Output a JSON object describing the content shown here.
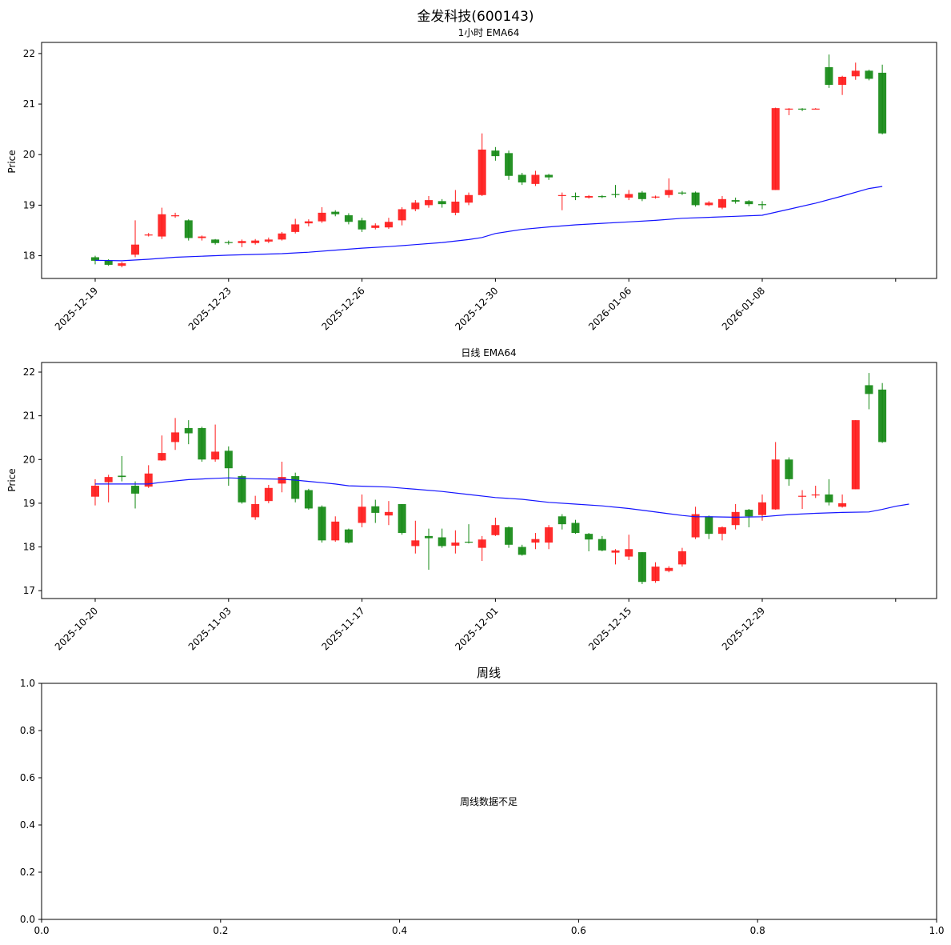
{
  "suptitle": "金发科技(600143)",
  "colors": {
    "up": "#ff1a1a",
    "down": "#138913",
    "ema": "#1414ff"
  },
  "chart_data": [
    {
      "type": "candlestick",
      "title": "1小时 EMA64",
      "ylabel": "Price",
      "ylim": [
        17.55,
        22.22
      ],
      "yticks": [
        "18",
        "19",
        "20",
        "21",
        "22"
      ],
      "xticks": [
        {
          "index": 0,
          "label": "2025-12-19"
        },
        {
          "index": 10,
          "label": "2025-12-23"
        },
        {
          "index": 20,
          "label": "2025-12-26"
        },
        {
          "index": 30,
          "label": "2025-12-30"
        },
        {
          "index": 40,
          "label": "2026-01-06"
        },
        {
          "index": 50,
          "label": "2026-01-08"
        },
        {
          "index": 60,
          "label": ""
        }
      ],
      "candles": [
        [
          17.97,
          17.9,
          18.0,
          17.83
        ],
        [
          17.9,
          17.82,
          17.93,
          17.8
        ],
        [
          17.8,
          17.85,
          17.88,
          17.77
        ],
        [
          18.02,
          18.22,
          18.7,
          17.97
        ],
        [
          18.4,
          18.42,
          18.45,
          18.38
        ],
        [
          18.38,
          18.82,
          18.95,
          18.33
        ],
        [
          18.78,
          18.8,
          18.85,
          18.75
        ],
        [
          18.7,
          18.35,
          18.72,
          18.3
        ],
        [
          18.35,
          18.38,
          18.4,
          18.3
        ],
        [
          18.32,
          18.25,
          18.33,
          18.22
        ],
        [
          18.27,
          18.25,
          18.3,
          18.22
        ],
        [
          18.25,
          18.29,
          18.32,
          18.17
        ],
        [
          18.25,
          18.3,
          18.33,
          18.22
        ],
        [
          18.28,
          18.32,
          18.36,
          18.25
        ],
        [
          18.32,
          18.44,
          18.47,
          18.3
        ],
        [
          18.47,
          18.62,
          18.73,
          18.44
        ],
        [
          18.64,
          18.68,
          18.72,
          18.58
        ],
        [
          18.68,
          18.85,
          18.96,
          18.65
        ],
        [
          18.87,
          18.82,
          18.9,
          18.78
        ],
        [
          18.8,
          18.67,
          18.84,
          18.62
        ],
        [
          18.7,
          18.52,
          18.75,
          18.47
        ],
        [
          18.55,
          18.6,
          18.64,
          18.52
        ],
        [
          18.56,
          18.67,
          18.75,
          18.53
        ],
        [
          18.7,
          18.92,
          18.96,
          18.6
        ],
        [
          18.92,
          19.05,
          19.1,
          18.88
        ],
        [
          19.0,
          19.1,
          19.18,
          18.95
        ],
        [
          19.08,
          19.02,
          19.12,
          18.95
        ],
        [
          18.85,
          19.07,
          19.3,
          18.8
        ],
        [
          19.05,
          19.2,
          19.25,
          19.0
        ],
        [
          19.2,
          20.1,
          20.42,
          19.18
        ],
        [
          20.08,
          19.97,
          20.15,
          19.88
        ],
        [
          20.03,
          19.58,
          20.08,
          19.5
        ],
        [
          19.6,
          19.45,
          19.64,
          19.4
        ],
        [
          19.42,
          19.6,
          19.68,
          19.38
        ],
        [
          19.6,
          19.55,
          19.62,
          19.5
        ],
        [
          19.2,
          19.2,
          19.25,
          18.9
        ],
        [
          19.18,
          19.17,
          19.25,
          19.1
        ],
        [
          19.15,
          19.18,
          19.2,
          19.13
        ],
        [
          19.18,
          19.16,
          19.2,
          19.14
        ],
        [
          19.22,
          19.2,
          19.4,
          19.15
        ],
        [
          19.15,
          19.22,
          19.3,
          19.1
        ],
        [
          19.25,
          19.12,
          19.28,
          19.08
        ],
        [
          19.15,
          19.17,
          19.19,
          19.13
        ],
        [
          19.2,
          19.3,
          19.53,
          19.15
        ],
        [
          19.25,
          19.23,
          19.28,
          19.2
        ],
        [
          19.25,
          19.0,
          19.27,
          18.97
        ],
        [
          19.0,
          19.05,
          19.08,
          18.98
        ],
        [
          18.95,
          19.12,
          19.18,
          18.92
        ],
        [
          19.1,
          19.07,
          19.15,
          19.03
        ],
        [
          19.08,
          19.02,
          19.1,
          18.98
        ],
        [
          19.02,
          19.0,
          19.08,
          18.92
        ],
        [
          19.3,
          20.92,
          20.93,
          19.3
        ],
        [
          20.9,
          20.91,
          20.92,
          20.78
        ],
        [
          20.91,
          20.9,
          20.92,
          20.86
        ],
        [
          20.91,
          20.91,
          20.92,
          20.9
        ],
        [
          21.73,
          21.38,
          21.98,
          21.32
        ],
        [
          21.38,
          21.54,
          21.56,
          21.18
        ],
        [
          21.55,
          21.66,
          21.82,
          21.48
        ],
        [
          21.66,
          21.5,
          21.68,
          21.47
        ],
        [
          21.62,
          20.42,
          21.78,
          20.4
        ]
      ],
      "ema": [
        [
          0,
          17.91
        ],
        [
          2,
          17.9
        ],
        [
          4,
          17.93
        ],
        [
          6,
          17.97
        ],
        [
          8,
          17.99
        ],
        [
          10,
          18.01
        ],
        [
          14,
          18.04
        ],
        [
          16,
          18.07
        ],
        [
          18,
          18.11
        ],
        [
          20,
          18.15
        ],
        [
          22,
          18.18
        ],
        [
          24,
          18.22
        ],
        [
          26,
          18.26
        ],
        [
          28,
          18.32
        ],
        [
          29,
          18.36
        ],
        [
          30,
          18.44
        ],
        [
          32,
          18.52
        ],
        [
          34,
          18.57
        ],
        [
          36,
          18.61
        ],
        [
          38,
          18.64
        ],
        [
          40,
          18.67
        ],
        [
          42,
          18.7
        ],
        [
          44,
          18.74
        ],
        [
          46,
          18.76
        ],
        [
          48,
          18.78
        ],
        [
          50,
          18.8
        ],
        [
          52,
          18.92
        ],
        [
          54,
          19.04
        ],
        [
          56,
          19.18
        ],
        [
          58,
          19.33
        ],
        [
          59,
          19.37
        ]
      ]
    },
    {
      "type": "candlestick",
      "title": "日线 EMA64",
      "ylabel": "Price",
      "ylim": [
        16.82,
        22.22
      ],
      "yticks": [
        "17",
        "18",
        "19",
        "20",
        "21",
        "22"
      ],
      "xticks": [
        {
          "index": 0,
          "label": "2025-10-20"
        },
        {
          "index": 10,
          "label": "2025-11-03"
        },
        {
          "index": 20,
          "label": "2025-11-17"
        },
        {
          "index": 30,
          "label": "2025-12-01"
        },
        {
          "index": 40,
          "label": "2025-12-15"
        },
        {
          "index": 50,
          "label": "2025-12-29"
        },
        {
          "index": 60,
          "label": ""
        }
      ],
      "candles": [
        [
          19.15,
          19.4,
          19.55,
          18.95
        ],
        [
          19.48,
          19.6,
          19.65,
          19.02
        ],
        [
          19.63,
          19.6,
          20.08,
          19.5
        ],
        [
          19.4,
          19.22,
          19.5,
          18.88
        ],
        [
          19.38,
          19.68,
          19.87,
          19.35
        ],
        [
          19.98,
          20.15,
          20.55,
          19.97
        ],
        [
          20.4,
          20.62,
          20.95,
          20.22
        ],
        [
          20.72,
          20.6,
          20.9,
          20.35
        ],
        [
          20.72,
          20.0,
          20.75,
          19.95
        ],
        [
          20.0,
          20.18,
          20.8,
          19.95
        ],
        [
          20.2,
          19.8,
          20.3,
          19.4
        ],
        [
          19.62,
          19.02,
          19.65,
          18.99
        ],
        [
          18.68,
          18.98,
          19.17,
          18.62
        ],
        [
          19.05,
          19.35,
          19.42,
          19.0
        ],
        [
          19.45,
          19.6,
          19.95,
          19.25
        ],
        [
          19.62,
          19.1,
          19.7,
          19.02
        ],
        [
          19.3,
          18.88,
          19.33,
          18.85
        ],
        [
          18.92,
          18.15,
          18.95,
          18.1
        ],
        [
          18.15,
          18.58,
          18.7,
          18.12
        ],
        [
          18.4,
          18.1,
          18.42,
          18.08
        ],
        [
          18.55,
          18.92,
          19.2,
          18.45
        ],
        [
          18.93,
          18.78,
          19.08,
          18.55
        ],
        [
          18.72,
          18.8,
          19.05,
          18.5
        ],
        [
          18.98,
          18.32,
          18.98,
          18.28
        ],
        [
          18.02,
          18.15,
          18.6,
          17.85
        ],
        [
          18.25,
          18.2,
          18.42,
          17.48
        ],
        [
          18.22,
          18.02,
          18.42,
          17.98
        ],
        [
          18.03,
          18.1,
          18.38,
          17.85
        ],
        [
          18.12,
          18.1,
          18.52,
          18.08
        ],
        [
          17.98,
          18.17,
          18.25,
          17.68
        ],
        [
          18.27,
          18.5,
          18.67,
          18.25
        ],
        [
          18.45,
          18.05,
          18.47,
          17.98
        ],
        [
          18.0,
          17.82,
          18.05,
          17.8
        ],
        [
          18.1,
          18.18,
          18.32,
          17.95
        ],
        [
          18.1,
          18.45,
          18.5,
          17.95
        ],
        [
          18.7,
          18.52,
          18.75,
          18.4
        ],
        [
          18.55,
          18.32,
          18.62,
          18.3
        ],
        [
          18.3,
          18.17,
          18.32,
          17.9
        ],
        [
          18.18,
          17.92,
          18.25,
          17.9
        ],
        [
          17.87,
          17.92,
          17.95,
          17.6
        ],
        [
          17.78,
          17.95,
          18.28,
          17.7
        ],
        [
          17.88,
          17.2,
          17.88,
          17.15
        ],
        [
          17.22,
          17.55,
          17.65,
          17.18
        ],
        [
          17.45,
          17.52,
          17.56,
          17.42
        ],
        [
          17.6,
          17.9,
          17.98,
          17.55
        ],
        [
          18.22,
          18.75,
          18.92,
          18.18
        ],
        [
          18.7,
          18.3,
          18.72,
          18.18
        ],
        [
          18.3,
          18.45,
          18.47,
          18.15
        ],
        [
          18.5,
          18.8,
          18.98,
          18.4
        ],
        [
          18.85,
          18.7,
          18.87,
          18.45
        ],
        [
          18.73,
          19.02,
          19.2,
          18.6
        ],
        [
          18.86,
          20.0,
          20.4,
          18.85
        ],
        [
          20.0,
          19.55,
          20.05,
          19.4
        ],
        [
          19.15,
          19.17,
          19.3,
          18.87
        ],
        [
          19.2,
          19.2,
          19.4,
          19.12
        ],
        [
          19.2,
          19.02,
          19.55,
          18.95
        ],
        [
          18.92,
          19.0,
          19.2,
          18.9
        ],
        [
          19.32,
          20.9,
          20.9,
          19.32
        ],
        [
          21.7,
          21.5,
          21.98,
          21.15
        ],
        [
          21.6,
          20.4,
          21.75,
          20.38
        ]
      ],
      "ema": [
        [
          0,
          19.44
        ],
        [
          2,
          19.44
        ],
        [
          4,
          19.44
        ],
        [
          5,
          19.48
        ],
        [
          7,
          19.54
        ],
        [
          9,
          19.57
        ],
        [
          10,
          19.58
        ],
        [
          12,
          19.56
        ],
        [
          14,
          19.55
        ],
        [
          15,
          19.53
        ],
        [
          16,
          19.5
        ],
        [
          17,
          19.47
        ],
        [
          18,
          19.44
        ],
        [
          19,
          19.4
        ],
        [
          20,
          19.39
        ],
        [
          22,
          19.37
        ],
        [
          24,
          19.32
        ],
        [
          26,
          19.27
        ],
        [
          28,
          19.2
        ],
        [
          30,
          19.13
        ],
        [
          32,
          19.09
        ],
        [
          34,
          19.02
        ],
        [
          36,
          18.98
        ],
        [
          38,
          18.94
        ],
        [
          40,
          18.88
        ],
        [
          41,
          18.84
        ],
        [
          43,
          18.76
        ],
        [
          44,
          18.72
        ],
        [
          45,
          18.69
        ],
        [
          46,
          18.69
        ],
        [
          48,
          18.68
        ],
        [
          50,
          18.69
        ],
        [
          52,
          18.74
        ],
        [
          54,
          18.77
        ],
        [
          56,
          18.79
        ],
        [
          58,
          18.8
        ],
        [
          59,
          18.86
        ],
        [
          60,
          18.93
        ],
        [
          61,
          18.98
        ]
      ]
    },
    {
      "type": "empty",
      "title": "周线",
      "message": "周线数据不足",
      "xticks": [
        "0.0",
        "0.2",
        "0.4",
        "0.6",
        "0.8",
        "1.0"
      ],
      "yticks": [
        "0.0",
        "0.2",
        "0.4",
        "0.6",
        "0.8",
        "1.0"
      ]
    }
  ]
}
